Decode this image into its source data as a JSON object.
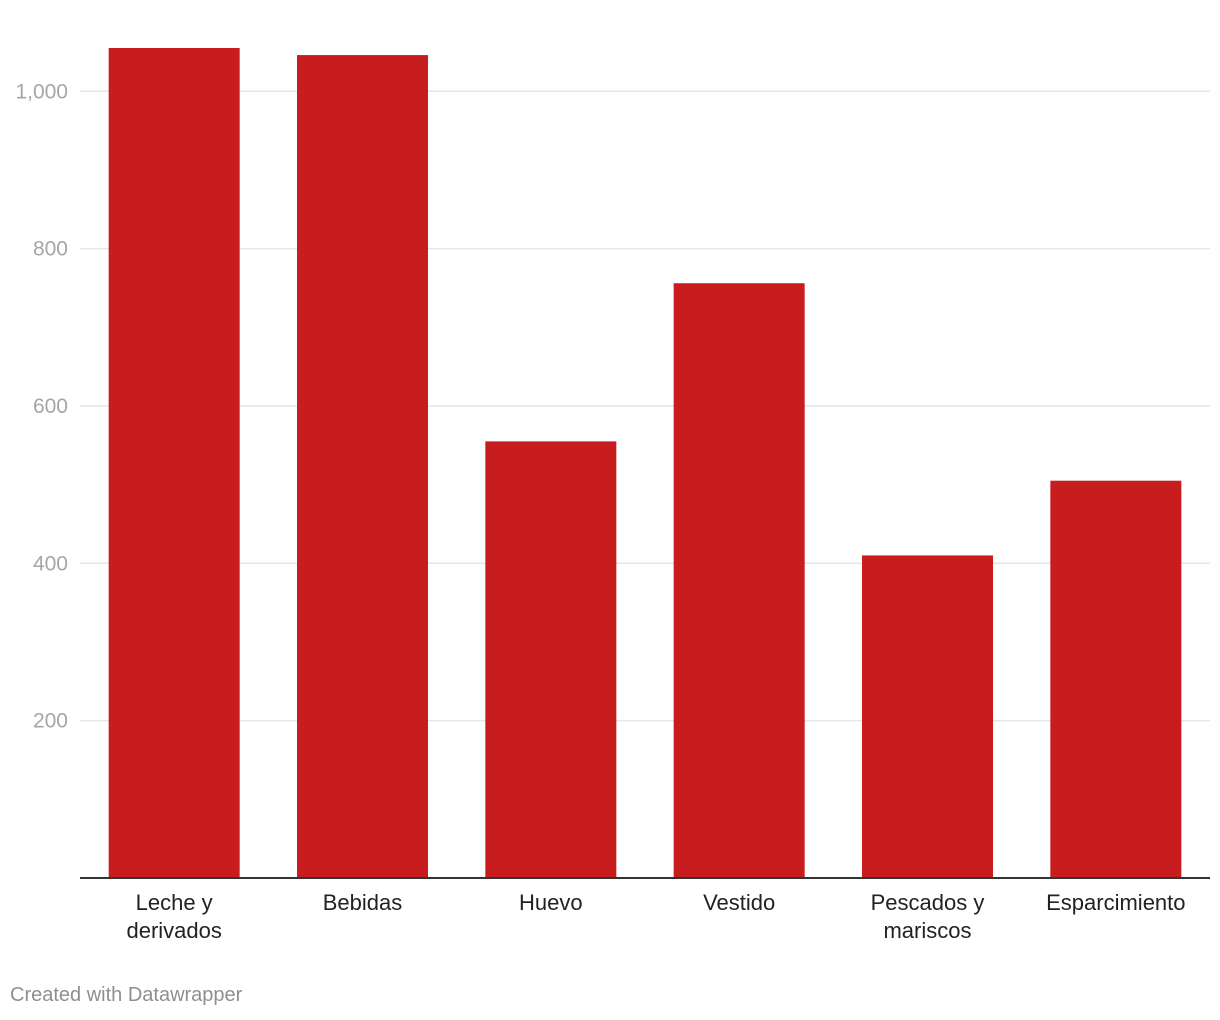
{
  "chart_data": {
    "type": "bar",
    "categories": [
      "Leche y derivados",
      "Bebidas",
      "Huevo",
      "Vestido",
      "Pescados y mariscos",
      "Esparcimiento"
    ],
    "category_lines": [
      [
        "Leche y",
        "derivados"
      ],
      [
        "Bebidas"
      ],
      [
        "Huevo"
      ],
      [
        "Vestido"
      ],
      [
        "Pescados y",
        "mariscos"
      ],
      [
        "Esparcimiento"
      ]
    ],
    "values": [
      1055,
      1046,
      555,
      756,
      410,
      505
    ],
    "yticks": [
      200,
      400,
      600,
      800,
      1000
    ],
    "ytick_labels": [
      "200",
      "400",
      "600",
      "800",
      "1,000"
    ],
    "ylim": [
      0,
      1055
    ],
    "grid": true,
    "bar_color": "#c71d1e",
    "grid_color": "#e6e6e6",
    "tick_label_color": "#a6a6a6",
    "axis_color": "#333333"
  },
  "footer": {
    "credit": "Created with Datawrapper"
  }
}
